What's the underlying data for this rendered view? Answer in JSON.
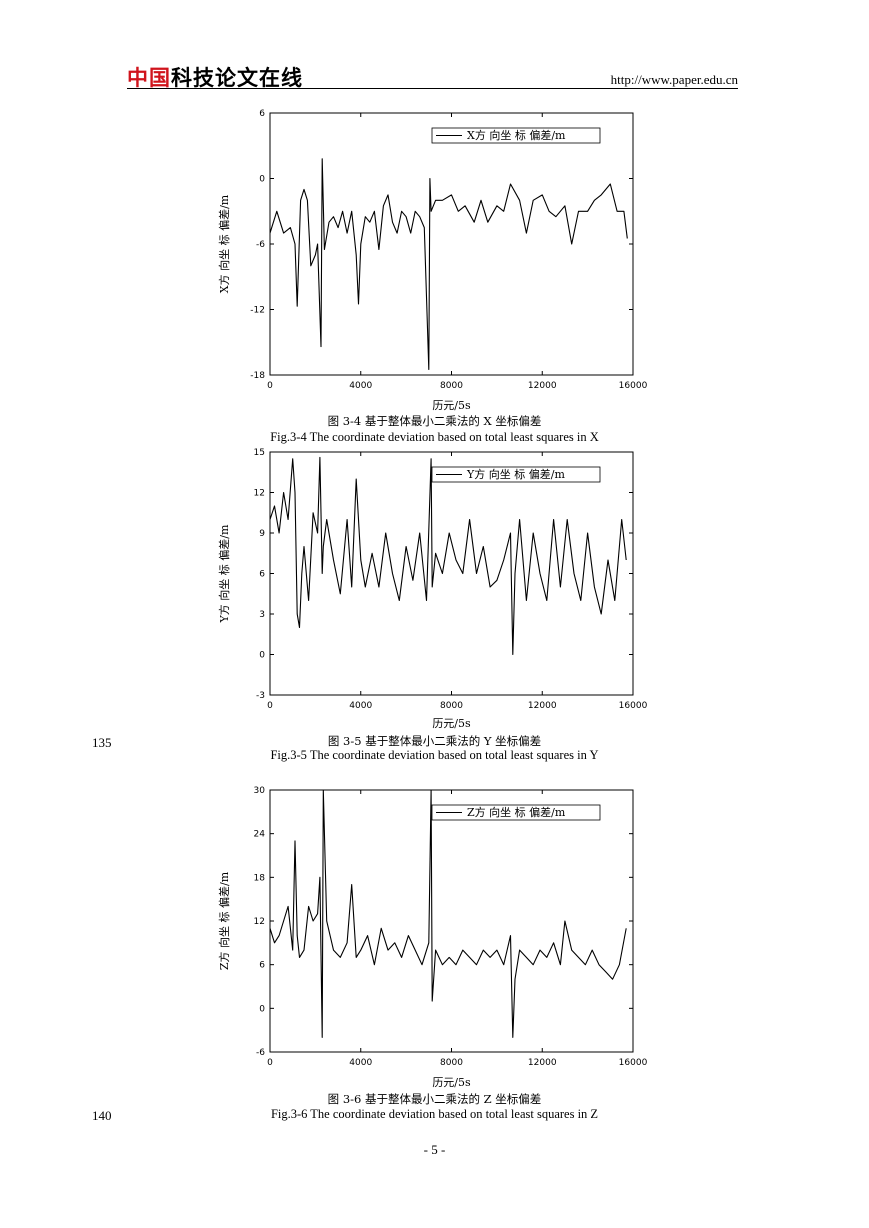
{
  "header": {
    "logo_red": "中国",
    "logo_black": "科技论文在线",
    "url": "http://www.paper.edu.cn"
  },
  "line_numbers": [
    "135",
    "140"
  ],
  "page_number": "- 5 -",
  "figures": [
    {
      "caption_cn": "图 3-4    基于整体最小二乘法的 X 坐标偏差",
      "caption_en": "Fig.3-4    The coordinate deviation based on total least squares in X"
    },
    {
      "caption_cn": "图 3-5    基于整体最小二乘法的 Y 坐标偏差",
      "caption_en": "Fig.3-5    The coordinate deviation based on total least squares in Y"
    },
    {
      "caption_cn": "图 3-6    基于整体最小二乘法的 Z 坐标偏差",
      "caption_en": "Fig.3-6    The coordinate deviation based on total least squares in Z"
    }
  ],
  "chart_data": [
    {
      "type": "line",
      "xlabel": "历元/5s",
      "ylabel": "X方 向坐 标 偏差/m",
      "xlim": [
        0,
        16000
      ],
      "ylim": [
        -18,
        6
      ],
      "xticks": [
        0,
        4000,
        8000,
        12000,
        16000
      ],
      "yticks": [
        -18,
        -12,
        -6,
        0,
        6
      ],
      "legend_placement": "top-right",
      "series": [
        {
          "name": "X方 向坐 标 偏差/m",
          "x": [
            0,
            300,
            600,
            900,
            1100,
            1200,
            1350,
            1500,
            1650,
            1800,
            2000,
            2100,
            2250,
            2300,
            2400,
            2600,
            2800,
            3000,
            3200,
            3400,
            3600,
            3800,
            3900,
            4000,
            4200,
            4400,
            4600,
            4800,
            5000,
            5200,
            5400,
            5600,
            5800,
            6000,
            6200,
            6400,
            6600,
            6800,
            7000,
            7050,
            7100,
            7300,
            7600,
            8000,
            8300,
            8600,
            9000,
            9300,
            9600,
            10000,
            10300,
            10600,
            11000,
            11300,
            11600,
            12000,
            12300,
            12600,
            13000,
            13300,
            13600,
            14000,
            14300,
            14600,
            15000,
            15300,
            15600,
            15750
          ],
          "y": [
            -5,
            -3,
            -5,
            -4.5,
            -6,
            -11.7,
            -2,
            -1,
            -2,
            -8,
            -7,
            -6,
            -15.4,
            1.8,
            -6.5,
            -4,
            -3.5,
            -4.5,
            -3,
            -5,
            -3,
            -7,
            -11.5,
            -6,
            -3.5,
            -4,
            -3,
            -6.5,
            -2.5,
            -1.5,
            -4,
            -5,
            -3,
            -3.5,
            -5,
            -3,
            -3.5,
            -4.5,
            -17.5,
            0,
            -3,
            -2,
            -2,
            -1.5,
            -3,
            -2.5,
            -4,
            -2,
            -4,
            -2.5,
            -3,
            -0.5,
            -2,
            -5,
            -2,
            -1.5,
            -3,
            -3.5,
            -2.5,
            -6,
            -3,
            -3,
            -2,
            -1.5,
            -0.5,
            -3,
            -3,
            -5.5
          ]
        }
      ]
    },
    {
      "type": "line",
      "xlabel": "历元/5s",
      "ylabel": "Y方 向坐 标 偏差/m",
      "xlim": [
        0,
        16000
      ],
      "ylim": [
        -3,
        15
      ],
      "xticks": [
        0,
        4000,
        8000,
        12000,
        16000
      ],
      "yticks": [
        -3,
        0,
        3,
        6,
        9,
        12,
        15
      ],
      "legend_placement": "top-right",
      "series": [
        {
          "name": "Y方 向坐 标 偏差/m",
          "x": [
            0,
            200,
            400,
            600,
            800,
            1000,
            1100,
            1200,
            1300,
            1400,
            1500,
            1700,
            1900,
            2100,
            2200,
            2300,
            2350,
            2500,
            2800,
            3100,
            3400,
            3600,
            3800,
            4000,
            4200,
            4500,
            4800,
            5100,
            5400,
            5700,
            6000,
            6300,
            6600,
            6900,
            7100,
            7150,
            7300,
            7600,
            7900,
            8200,
            8500,
            8800,
            9100,
            9400,
            9700,
            10000,
            10300,
            10600,
            10700,
            10800,
            11000,
            11300,
            11600,
            11900,
            12200,
            12500,
            12800,
            13100,
            13400,
            13700,
            14000,
            14300,
            14600,
            14900,
            15200,
            15500,
            15700
          ],
          "y": [
            10,
            11,
            9,
            12,
            10,
            14.5,
            12,
            3,
            2,
            6,
            8,
            4,
            10.5,
            9,
            14.6,
            6,
            8,
            10,
            7,
            4.5,
            10,
            5,
            13,
            7,
            5,
            7.5,
            5,
            9,
            6,
            4,
            8,
            5.5,
            9,
            4,
            14.5,
            5,
            7.5,
            6,
            9,
            7,
            6,
            10,
            6,
            8,
            5,
            5.5,
            7,
            9,
            0,
            6,
            10,
            4,
            9,
            6,
            4,
            10,
            5,
            10,
            6,
            4,
            9,
            5,
            3,
            7,
            4,
            10,
            7
          ]
        }
      ]
    },
    {
      "type": "line",
      "xlabel": "历元/5s",
      "ylabel": "Z方 向坐 标 偏差/m",
      "xlim": [
        0,
        16000
      ],
      "ylim": [
        -6,
        30
      ],
      "xticks": [
        0,
        4000,
        8000,
        12000,
        16000
      ],
      "yticks": [
        -6,
        0,
        6,
        12,
        18,
        24,
        30
      ],
      "legend_placement": "top-right",
      "series": [
        {
          "name": "Z方 向坐 标 偏差/m",
          "x": [
            0,
            200,
            400,
            600,
            800,
            1000,
            1100,
            1200,
            1300,
            1500,
            1700,
            1900,
            2100,
            2200,
            2300,
            2350,
            2500,
            2800,
            3100,
            3400,
            3600,
            3800,
            4000,
            4300,
            4600,
            4900,
            5200,
            5500,
            5800,
            6100,
            6400,
            6700,
            7000,
            7100,
            7150,
            7300,
            7600,
            7900,
            8200,
            8500,
            8800,
            9100,
            9400,
            9700,
            10000,
            10300,
            10600,
            10700,
            10800,
            11000,
            11300,
            11600,
            11900,
            12200,
            12500,
            12800,
            13000,
            13300,
            13600,
            13900,
            14200,
            14500,
            14800,
            15100,
            15400,
            15700
          ],
          "y": [
            11,
            9,
            10,
            12,
            14,
            8,
            23,
            10,
            7,
            8,
            14,
            12,
            13,
            18,
            -4,
            30,
            12,
            8,
            7,
            9,
            17,
            7,
            8,
            10,
            6,
            11,
            8,
            9,
            7,
            10,
            8,
            6,
            9,
            30,
            1,
            8,
            6,
            7,
            6,
            8,
            7,
            6,
            8,
            7,
            8,
            6,
            10,
            -4,
            4,
            8,
            7,
            6,
            8,
            7,
            9,
            6,
            12,
            8,
            7,
            6,
            8,
            6,
            5,
            4,
            6,
            11
          ]
        }
      ]
    }
  ]
}
